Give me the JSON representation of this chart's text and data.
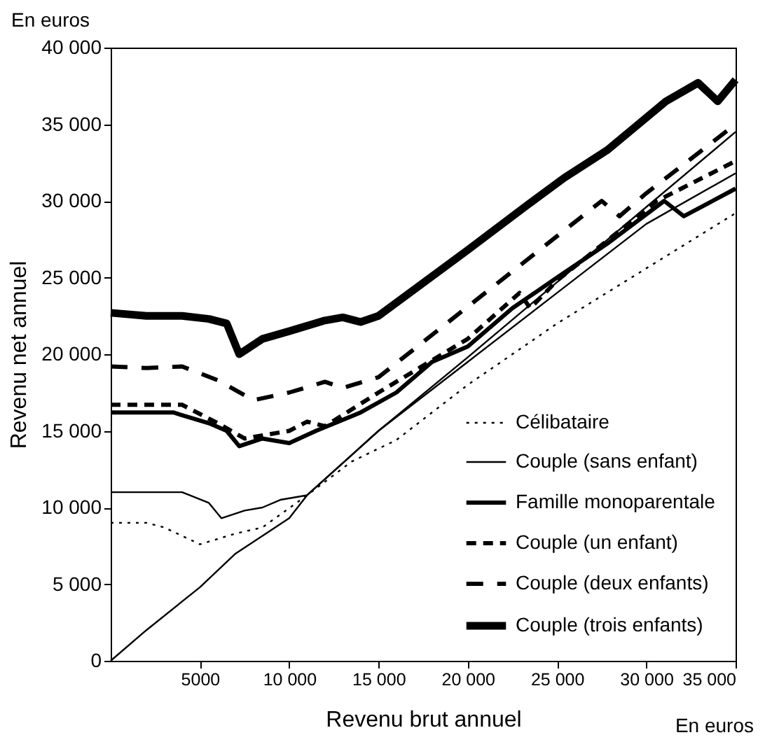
{
  "chart_data": {
    "type": "line",
    "xlabel": "Revenu brut annuel",
    "ylabel": "Revenu net annuel",
    "annotations": [
      "En euros",
      "En euros"
    ],
    "xlim": [
      0,
      35000
    ],
    "ylim": [
      0,
      40000
    ],
    "xticks": [
      {
        "value": 5000,
        "label": "5000"
      },
      {
        "value": 10000,
        "label": "10 000"
      },
      {
        "value": 15000,
        "label": "15 000"
      },
      {
        "value": 20000,
        "label": "20 000"
      },
      {
        "value": 25000,
        "label": "25 000"
      },
      {
        "value": 30000,
        "label": "30 000"
      },
      {
        "value": 35000,
        "label": "35 000"
      }
    ],
    "yticks": [
      0,
      {
        "value": 5000,
        "label": "5 000"
      },
      {
        "value": 10000,
        "label": "10 000"
      },
      {
        "value": 15000,
        "label": "15 000"
      },
      {
        "value": 20000,
        "label": "20 000"
      },
      {
        "value": 25000,
        "label": "25 000"
      },
      {
        "value": 30000,
        "label": "30 000"
      },
      {
        "value": 35000,
        "label": "35 000"
      },
      {
        "value": 40000,
        "label": "40 000"
      }
    ],
    "grid": false,
    "legend": "bottom right",
    "marker": "none",
    "series": [
      {
        "name": "Célibataire",
        "color": "#000000",
        "line_style": "dotted",
        "x": [
          0,
          2000,
          3000,
          5000,
          7000,
          8500,
          11000,
          13500,
          16000,
          20000,
          25000,
          30000,
          35000
        ],
        "values": [
          9000,
          9000,
          8700,
          7600,
          8300,
          8700,
          10800,
          13000,
          14400,
          18000,
          22000,
          25600,
          29200
        ]
      },
      {
        "name": "Couple (sans enfant)",
        "color": "#000000",
        "line_style": "solid",
        "x": [
          0,
          4000,
          5500,
          6200,
          7500,
          8500,
          9500,
          11000,
          15000,
          20000,
          25000,
          30000,
          35000
        ],
        "values": [
          11000,
          11000,
          10300,
          9300,
          9800,
          10000,
          10500,
          10800,
          15000,
          19500,
          24000,
          28500,
          31800
        ]
      },
      {
        "name": "Famille monoparentale",
        "color": "#000000",
        "line_style": "solid",
        "x": [
          0,
          3500,
          5500,
          6500,
          7200,
          8500,
          10000,
          11500,
          14000,
          16000,
          18000,
          20000,
          22500,
          25000,
          27800,
          31000,
          32100,
          35000
        ],
        "values": [
          16200,
          16200,
          15500,
          15000,
          14000,
          14500,
          14200,
          15000,
          16200,
          17500,
          19500,
          20500,
          23000,
          25000,
          27200,
          30000,
          29000,
          30800
        ]
      },
      {
        "name": "Couple (un enfant)",
        "color": "#000000",
        "line_style": "dashed",
        "x": [
          0,
          4000,
          6000,
          7500,
          10000,
          11000,
          12000,
          15000,
          20000,
          22900,
          23500,
          25000,
          30600,
          35000
        ],
        "values": [
          16700,
          16700,
          15500,
          14500,
          15000,
          15600,
          15300,
          17500,
          21000,
          24000,
          23000,
          24800,
          30000,
          32600
        ]
      },
      {
        "name": "Couple (deux enfants)",
        "color": "#000000",
        "line_style": "dashed",
        "x": [
          0,
          2000,
          4000,
          6000,
          8000,
          10000,
          12000,
          13000,
          15000,
          20000,
          25000,
          27500,
          28500,
          30000,
          35000
        ],
        "values": [
          19200,
          19100,
          19200,
          18300,
          17000,
          17500,
          18200,
          17800,
          18500,
          23100,
          27700,
          30000,
          29000,
          30500,
          35000
        ]
      },
      {
        "name": "Couple (trois enfants)",
        "color": "#000000",
        "line_style": "solid",
        "x": [
          0,
          2000,
          4000,
          5500,
          6500,
          7200,
          8500,
          10000,
          12000,
          13000,
          14000,
          15000,
          20000,
          23300,
          25400,
          27800,
          31100,
          32900,
          34000,
          35000
        ],
        "values": [
          22700,
          22500,
          22500,
          22300,
          22000,
          20000,
          21000,
          21500,
          22200,
          22400,
          22100,
          22500,
          26800,
          29700,
          31500,
          33300,
          36500,
          37700,
          36500,
          37900
        ]
      },
      {
        "color": "#000000",
        "line_style": "solid",
        "x": [
          0,
          2000,
          5000,
          7000,
          10000,
          11000,
          15000,
          20000,
          25000,
          30000,
          35000
        ],
        "values": [
          0,
          2000,
          4800,
          7000,
          9300,
          10800,
          15000,
          19800,
          24700,
          29600,
          34500
        ]
      }
    ]
  }
}
